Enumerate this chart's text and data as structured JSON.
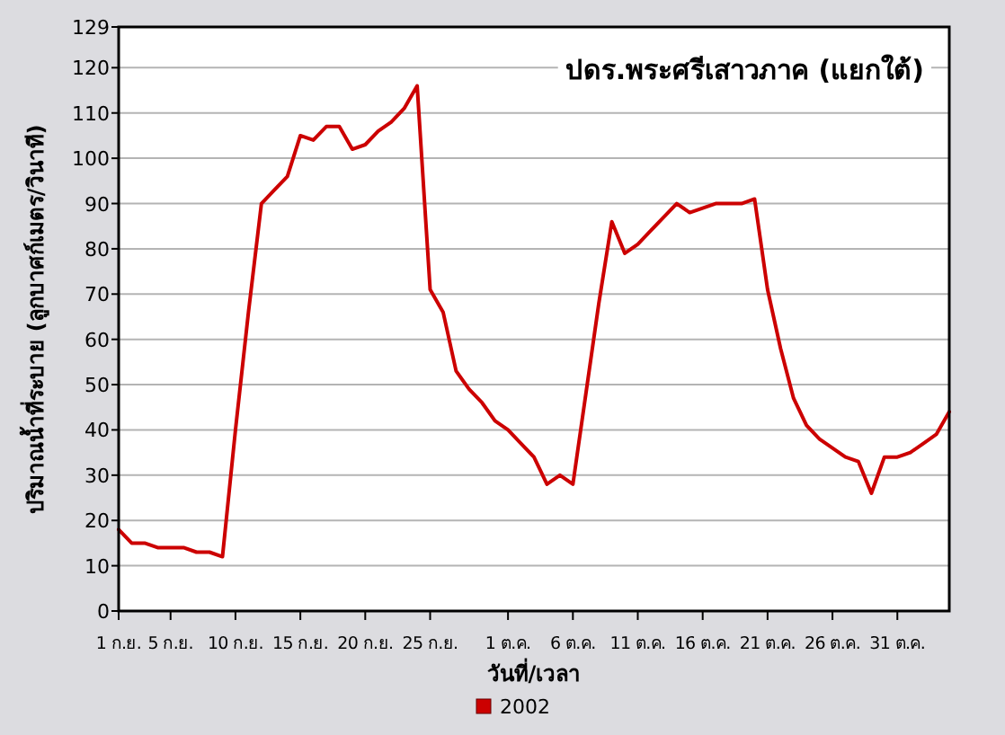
{
  "chart_data": {
    "type": "line",
    "title": "ปดร.พระศรีเสาวภาค (แยกใต้)",
    "xlabel": "วันที่/เวลา",
    "ylabel": "ปริมาณน้ำที่ระบาย (ลูกบาศก์เมตร/วินาที)",
    "x": [
      "2002-09-01",
      "2002-09-02",
      "2002-09-03",
      "2002-09-04",
      "2002-09-05",
      "2002-09-06",
      "2002-09-07",
      "2002-09-08",
      "2002-09-09",
      "2002-09-10",
      "2002-09-11",
      "2002-09-12",
      "2002-09-13",
      "2002-09-14",
      "2002-09-15",
      "2002-09-16",
      "2002-09-17",
      "2002-09-18",
      "2002-09-19",
      "2002-09-20",
      "2002-09-21",
      "2002-09-22",
      "2002-09-23",
      "2002-09-24",
      "2002-09-25",
      "2002-09-26",
      "2002-09-27",
      "2002-09-28",
      "2002-09-29",
      "2002-09-30",
      "2002-10-01",
      "2002-10-02",
      "2002-10-03",
      "2002-10-04",
      "2002-10-05",
      "2002-10-06",
      "2002-10-07",
      "2002-10-08",
      "2002-10-09",
      "2002-10-10",
      "2002-10-11",
      "2002-10-12",
      "2002-10-13",
      "2002-10-14",
      "2002-10-15",
      "2002-10-16",
      "2002-10-17",
      "2002-10-18",
      "2002-10-19",
      "2002-10-20",
      "2002-10-21",
      "2002-10-22",
      "2002-10-23",
      "2002-10-24",
      "2002-10-25",
      "2002-10-26",
      "2002-10-27",
      "2002-10-28",
      "2002-10-29",
      "2002-10-30",
      "2002-10-31",
      "2002-11-01",
      "2002-11-02",
      "2002-11-03",
      "2002-11-04"
    ],
    "series": [
      {
        "name": "2002",
        "color": "#cc0000",
        "values": [
          18,
          15,
          15,
          14,
          14,
          14,
          13,
          13,
          12,
          40,
          66,
          90,
          93,
          96,
          105,
          104,
          107,
          107,
          102,
          103,
          106,
          108,
          111,
          116,
          71,
          66,
          53,
          49,
          46,
          42,
          40,
          37,
          34,
          28,
          30,
          28,
          48,
          68,
          86,
          79,
          81,
          84,
          87,
          90,
          88,
          89,
          90,
          90,
          90,
          91,
          71,
          58,
          47,
          41,
          38,
          36,
          34,
          33,
          26,
          34,
          34,
          35,
          37,
          39,
          44
        ]
      }
    ],
    "xlim": [
      "2002-09-01",
      "2002-11-04"
    ],
    "xticks": [
      {
        "value": "2002-09-01",
        "label": "1 ก.ย."
      },
      {
        "value": "2002-09-05",
        "label": "5 ก.ย."
      },
      {
        "value": "2002-09-10",
        "label": "10 ก.ย."
      },
      {
        "value": "2002-09-15",
        "label": "15 ก.ย."
      },
      {
        "value": "2002-09-20",
        "label": "20 ก.ย."
      },
      {
        "value": "2002-09-25",
        "label": "25 ก.ย."
      },
      {
        "value": "2002-10-01",
        "label": "1 ต.ค."
      },
      {
        "value": "2002-10-06",
        "label": "6 ต.ค."
      },
      {
        "value": "2002-10-11",
        "label": "11 ต.ค."
      },
      {
        "value": "2002-10-16",
        "label": "16 ต.ค."
      },
      {
        "value": "2002-10-21",
        "label": "21 ต.ค."
      },
      {
        "value": "2002-10-26",
        "label": "26 ต.ค."
      },
      {
        "value": "2002-10-31",
        "label": "31 ต.ค."
      }
    ],
    "ylim": [
      0,
      129
    ],
    "yticks": [
      0,
      10,
      20,
      30,
      40,
      50,
      60,
      70,
      80,
      90,
      100,
      110,
      120,
      129
    ],
    "grid": "y",
    "legend": "bottom"
  }
}
